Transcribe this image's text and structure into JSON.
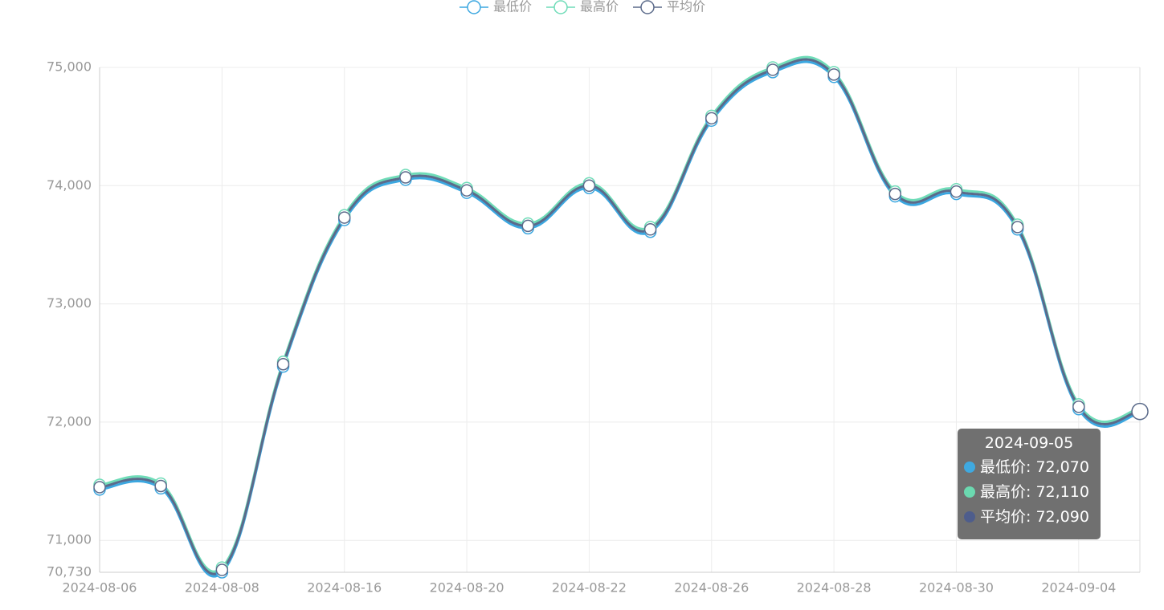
{
  "chart_data": {
    "type": "line",
    "categories": [
      "2024-08-06",
      null,
      "2024-08-08",
      null,
      "2024-08-16",
      null,
      "2024-08-20",
      null,
      "2024-08-22",
      null,
      "2024-08-26",
      null,
      "2024-08-28",
      null,
      "2024-08-30",
      null,
      "2024-09-04",
      "2024-09-05"
    ],
    "series": [
      {
        "name": "最低价",
        "color": "#3ba7e0",
        "values": [
          71430,
          71440,
          70730,
          72470,
          73710,
          74050,
          73940,
          73640,
          73980,
          73610,
          74550,
          74960,
          74920,
          73910,
          73930,
          73630,
          72110,
          72070
        ],
        "value_labels": [
          null,
          null,
          null,
          null,
          null,
          null,
          null,
          null,
          null,
          null,
          null,
          null,
          null,
          null,
          null,
          null,
          null,
          "72,070"
        ]
      },
      {
        "name": "最高价",
        "color": "#6fdcb8",
        "values": [
          71470,
          71480,
          70770,
          72510,
          73750,
          74090,
          73980,
          73680,
          74020,
          73650,
          74590,
          75000,
          74960,
          73950,
          73970,
          73670,
          72150,
          72110
        ],
        "value_labels": [
          null,
          null,
          null,
          null,
          null,
          null,
          null,
          null,
          null,
          null,
          null,
          null,
          null,
          null,
          null,
          null,
          null,
          "72,110"
        ]
      },
      {
        "name": "平均价",
        "color": "#5b6a8a",
        "values": [
          71450,
          71460,
          70750,
          72490,
          73730,
          74070,
          73960,
          73660,
          74000,
          73630,
          74570,
          74980,
          74940,
          73930,
          73950,
          73650,
          72130,
          72090
        ],
        "value_labels": [
          null,
          null,
          null,
          null,
          null,
          null,
          null,
          null,
          null,
          null,
          null,
          null,
          null,
          null,
          null,
          null,
          null,
          "72,090"
        ]
      }
    ],
    "ylim": [
      70730,
      75000
    ],
    "yticks": [
      {
        "value": 70730,
        "label": "70,730"
      },
      {
        "value": 71000,
        "label": "71,000"
      },
      {
        "value": 72000,
        "label": "72,000"
      },
      {
        "value": 73000,
        "label": "73,000"
      },
      {
        "value": 74000,
        "label": "74,000"
      },
      {
        "value": 75000,
        "label": "75,000"
      }
    ],
    "grid": true,
    "legend": "top"
  }
}
